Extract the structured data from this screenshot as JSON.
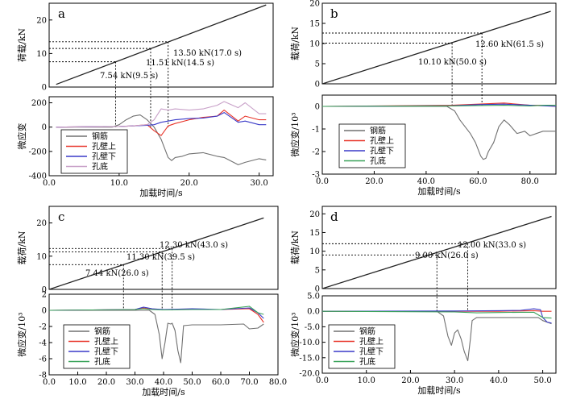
{
  "figure": {
    "panels": [
      "a",
      "b",
      "c",
      "d"
    ],
    "colors": {
      "steel": "#707070",
      "steel_dark": "#333333",
      "wall_upper": "#e8352a",
      "wall_lower": "#3a3ac8",
      "hole_bottom_a": "#c8a0c8",
      "hole_bottom": "#3aa35a",
      "load_line": "#222222"
    }
  },
  "chart_data": [
    {
      "panel": "a",
      "part": "load",
      "type": "line",
      "label": "a",
      "ylabel": "荷载/kN",
      "xlim": [
        0,
        32
      ],
      "ylim": [
        0,
        25
      ],
      "xticks": [],
      "yticks": [
        0,
        10,
        20
      ],
      "series": [
        {
          "name": "load",
          "x": [
            1,
            31
          ],
          "y": [
            0.8,
            24.5
          ]
        }
      ],
      "markers": [
        {
          "x": 9.5,
          "y": 7.54,
          "label": "7.54 kN(9.5 s)"
        },
        {
          "x": 14.5,
          "y": 11.51,
          "label": "11.51 kN(14.5 s)"
        },
        {
          "x": 17.0,
          "y": 13.5,
          "label": "13.50 kN(17.0 s)"
        }
      ]
    },
    {
      "panel": "a",
      "part": "strain",
      "type": "line",
      "ylabel": "微应变",
      "xlabel": "加载时间/s",
      "xlim": [
        0,
        32
      ],
      "ylim": [
        -400,
        250
      ],
      "xticks": [
        0,
        10,
        20,
        30
      ],
      "xticklabels": [
        "0.0",
        "10.0",
        "20.0",
        "30.0"
      ],
      "yticks": [
        -400,
        -200,
        0,
        200
      ],
      "legend": [
        "钢筋",
        "孔壁上",
        "孔壁下",
        "孔底"
      ],
      "series": [
        {
          "name": "钢筋",
          "x": [
            1,
            9,
            10,
            11,
            12,
            13,
            14,
            15,
            16,
            17,
            17.5,
            18,
            19,
            20,
            22,
            24,
            25,
            27,
            28,
            30,
            31
          ],
          "y": [
            0,
            0,
            20,
            60,
            90,
            100,
            60,
            0,
            -100,
            -250,
            -275,
            -250,
            -240,
            -220,
            -210,
            -240,
            -250,
            -310,
            -290,
            -260,
            -270
          ]
        },
        {
          "name": "孔壁上",
          "x": [
            1,
            10,
            12,
            14,
            15,
            16,
            17,
            18,
            20,
            22,
            24,
            25,
            27,
            28,
            30,
            31
          ],
          "y": [
            0,
            5,
            10,
            20,
            -30,
            -70,
            10,
            30,
            60,
            80,
            90,
            140,
            50,
            90,
            60,
            60
          ]
        },
        {
          "name": "孔壁下",
          "x": [
            1,
            10,
            12,
            14,
            15,
            16,
            17,
            18,
            20,
            22,
            24,
            25,
            27,
            28,
            30,
            31
          ],
          "y": [
            0,
            5,
            10,
            15,
            20,
            40,
            50,
            60,
            70,
            75,
            90,
            120,
            40,
            50,
            20,
            20
          ]
        },
        {
          "name": "孔底",
          "x": [
            1,
            10,
            12,
            14,
            15,
            16,
            17,
            18,
            20,
            22,
            24,
            25,
            27,
            28,
            30,
            31
          ],
          "y": [
            0,
            5,
            10,
            20,
            60,
            150,
            140,
            150,
            140,
            150,
            180,
            210,
            160,
            200,
            110,
            110
          ]
        }
      ]
    },
    {
      "panel": "b",
      "part": "load",
      "type": "line",
      "label": "b",
      "ylabel": "载荷/kN",
      "xlim": [
        0,
        90
      ],
      "ylim": [
        0,
        20
      ],
      "xticks": [],
      "yticks": [
        0,
        5,
        10,
        15,
        20
      ],
      "series": [
        {
          "name": "load",
          "x": [
            0,
            88
          ],
          "y": [
            0,
            18
          ]
        }
      ],
      "markers": [
        {
          "x": 50.0,
          "y": 10.1,
          "label": "10.10 kN(50.0 s)"
        },
        {
          "x": 61.5,
          "y": 12.6,
          "label": "12.60 kN(61.5 s)"
        }
      ]
    },
    {
      "panel": "b",
      "part": "strain",
      "type": "line",
      "ylabel": "微应变/10³",
      "xlabel": "加载时间/s",
      "xlim": [
        0,
        90
      ],
      "ylim": [
        -3.0,
        0.5
      ],
      "xticks": [
        0,
        20,
        40,
        60,
        80
      ],
      "xticklabels": [
        "0.0",
        "20.0",
        "40.0",
        "60.0",
        "80.0"
      ],
      "yticks": [
        -3.0,
        -2.0,
        -1.0,
        0.0
      ],
      "legend": [
        "钢筋",
        "孔壁上",
        "孔壁下",
        "孔底"
      ],
      "series": [
        {
          "name": "钢筋",
          "x": [
            0,
            48,
            51,
            53,
            55,
            57,
            59,
            61,
            62,
            63,
            64,
            66,
            68,
            70,
            72,
            75,
            78,
            80,
            85,
            90
          ],
          "y": [
            0,
            0,
            -0.2,
            -0.6,
            -0.9,
            -1.2,
            -1.6,
            -2.2,
            -2.35,
            -2.3,
            -2.0,
            -1.6,
            -0.9,
            -0.6,
            -0.8,
            -1.2,
            -1.1,
            -1.3,
            -1.1,
            -1.1
          ]
        },
        {
          "name": "孔壁上",
          "x": [
            0,
            50,
            60,
            70,
            80,
            85,
            90
          ],
          "y": [
            0,
            0.05,
            0.1,
            0.15,
            0.05,
            0.05,
            0.0
          ]
        },
        {
          "name": "孔壁下",
          "x": [
            0,
            50,
            60,
            70,
            80,
            85,
            90
          ],
          "y": [
            0,
            0.03,
            0.08,
            0.1,
            0.05,
            0.03,
            0.0
          ]
        },
        {
          "name": "孔底",
          "x": [
            0,
            50,
            60,
            70,
            80,
            85,
            90
          ],
          "y": [
            0,
            0.02,
            0.04,
            0.05,
            0.02,
            0.05,
            0.05
          ]
        }
      ]
    },
    {
      "panel": "c",
      "part": "load",
      "type": "line",
      "label": "c",
      "ylabel": "载荷/kN",
      "xlim": [
        0,
        80
      ],
      "ylim": [
        0,
        25
      ],
      "xticks": [],
      "yticks": [
        0,
        10,
        20
      ],
      "series": [
        {
          "name": "load",
          "x": [
            0,
            75
          ],
          "y": [
            0,
            21.5
          ]
        }
      ],
      "markers": [
        {
          "x": 26.0,
          "y": 7.44,
          "label": "7.44 kN(26.0 s)"
        },
        {
          "x": 39.5,
          "y": 11.3,
          "label": "11.30 kN(39.5 s)"
        },
        {
          "x": 43.0,
          "y": 12.3,
          "label": "12.30 kN(43.0 s)"
        }
      ]
    },
    {
      "panel": "c",
      "part": "strain",
      "type": "line",
      "ylabel": "微应变/10³",
      "xlabel": "加载时间/s",
      "xlim": [
        0,
        80
      ],
      "ylim": [
        -8.0,
        2.0
      ],
      "xticks": [
        0,
        10,
        20,
        30,
        40,
        50,
        60,
        70,
        80
      ],
      "xticklabels": [
        "0.0",
        "10.0",
        "20.0",
        "30.0",
        "40.0",
        "50.0",
        "60.0",
        "70.0",
        "80.0"
      ],
      "yticks": [
        -8.0,
        -6.0,
        -4.0,
        -2.0,
        0.0,
        2.0
      ],
      "legend": [
        "钢筋",
        "孔壁上",
        "孔壁下",
        "孔底"
      ],
      "series": [
        {
          "name": "钢筋",
          "x": [
            0,
            35,
            37,
            38.5,
            39.5,
            40.5,
            41.5,
            42.5,
            43,
            44,
            45,
            46,
            47,
            50,
            60,
            68,
            70,
            73,
            75
          ],
          "y": [
            0,
            0,
            -0.5,
            -3,
            -6,
            -4,
            -1.6,
            -1.7,
            -1.6,
            -2.5,
            -5,
            -6.5,
            -1.9,
            -1.8,
            -1.8,
            -1.7,
            -2.3,
            -2.2,
            -1.7
          ]
        },
        {
          "name": "孔壁上",
          "x": [
            0,
            30,
            33,
            36,
            40,
            50,
            60,
            70,
            73,
            75
          ],
          "y": [
            0,
            0.1,
            0.3,
            0.1,
            0.1,
            0.1,
            0.1,
            0.2,
            -0.5,
            -1.5
          ]
        },
        {
          "name": "孔壁下",
          "x": [
            0,
            30,
            33,
            36,
            40,
            50,
            60,
            70,
            73,
            75
          ],
          "y": [
            0,
            0.1,
            0.4,
            0.2,
            0.1,
            0.2,
            0.1,
            0.3,
            -0.3,
            -1.0
          ]
        },
        {
          "name": "孔底",
          "x": [
            0,
            30,
            33,
            36,
            40,
            50,
            60,
            70,
            73,
            75
          ],
          "y": [
            0,
            0.1,
            0.2,
            0.1,
            0.05,
            0.1,
            0.1,
            0.5,
            -0.3,
            -0.5
          ]
        }
      ]
    },
    {
      "panel": "d",
      "part": "load",
      "type": "line",
      "label": "d",
      "ylabel": "载荷/kN",
      "xlim": [
        0,
        53
      ],
      "ylim": [
        0,
        22
      ],
      "xticks": [],
      "yticks": [
        0,
        5,
        10,
        15,
        20
      ],
      "series": [
        {
          "name": "load",
          "x": [
            0,
            52
          ],
          "y": [
            0,
            19.3
          ]
        }
      ],
      "markers": [
        {
          "x": 26.0,
          "y": 9.0,
          "label": "9.00 kN(26.0 s)"
        },
        {
          "x": 33.0,
          "y": 12.0,
          "label": "12.00 kN(33.0 s)"
        }
      ]
    },
    {
      "panel": "d",
      "part": "strain",
      "type": "line",
      "ylabel": "微应变/10³",
      "xlabel": "加载时间/s",
      "xlim": [
        0,
        53
      ],
      "ylim": [
        -20,
        5
      ],
      "xticks": [
        0,
        10,
        20,
        30,
        40,
        50
      ],
      "xticklabels": [
        "0.0",
        "10.0",
        "20.0",
        "30.0",
        "40.0",
        "50.0"
      ],
      "yticks": [
        -20,
        -15,
        -10,
        -5,
        0,
        5
      ],
      "yticklabels": [
        "-20.0",
        "-15.0",
        "-10.0",
        "-5.0",
        "0.0",
        "5.0"
      ],
      "legend": [
        "钢筋",
        "孔壁上",
        "孔壁下",
        "孔底"
      ],
      "series": [
        {
          "name": "钢筋",
          "x": [
            0,
            26,
            27.5,
            28.5,
            29.3,
            30,
            30.7,
            31.5,
            32.2,
            33,
            33.6,
            34,
            35,
            40,
            45,
            49,
            50,
            52
          ],
          "y": [
            0,
            0,
            -1.5,
            -8,
            -11,
            -7,
            -6,
            -9,
            -13,
            -16,
            -9,
            -3,
            -2,
            -2,
            -2,
            -2,
            -3,
            -4
          ]
        },
        {
          "name": "孔壁上",
          "x": [
            0,
            30,
            40,
            48,
            50,
            52
          ],
          "y": [
            0,
            0,
            0,
            0.2,
            0,
            0
          ]
        },
        {
          "name": "孔壁下",
          "x": [
            0,
            30,
            40,
            45,
            48,
            49.5,
            50,
            51,
            52
          ],
          "y": [
            0,
            0.1,
            0.2,
            0.3,
            0.8,
            0.5,
            -2,
            -3.5,
            -3.8
          ]
        },
        {
          "name": "孔底",
          "x": [
            0,
            30,
            35,
            40,
            45,
            48,
            50,
            52
          ],
          "y": [
            0,
            -0.2,
            -0.5,
            -0.4,
            -0.3,
            -0.3,
            -2,
            -2.2
          ]
        }
      ]
    }
  ]
}
